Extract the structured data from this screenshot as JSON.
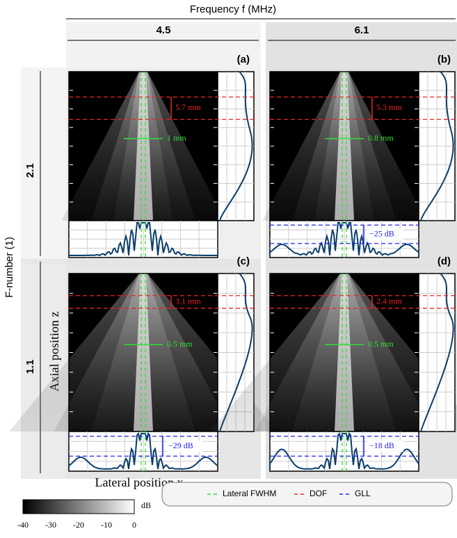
{
  "header": {
    "title": "Frequency f (MHz)",
    "columns": [
      "4.5",
      "6.1"
    ]
  },
  "rows": {
    "title": "F-number (1)",
    "labels": [
      "2.1",
      "1.1"
    ]
  },
  "axes": {
    "z": "Axial position z",
    "x": "Lateral position x"
  },
  "panels": [
    {
      "label": "(a)",
      "dof": "5.7 mm",
      "fwhm": "1 mm"
    },
    {
      "label": "(b)",
      "dof": "5.3 mm",
      "fwhm": "0.8 mm",
      "gll": "−25 dB"
    },
    {
      "label": "(c)",
      "dof": "3.1 mm",
      "fwhm": "0.5 mm",
      "gll": "−29 dB"
    },
    {
      "label": "(d)",
      "dof": "2.4 mm",
      "fwhm": "0.5 mm",
      "gll": "−18 dB"
    }
  ],
  "colorbar": {
    "unit": "dB",
    "ticks": [
      "-40",
      "-30",
      "-20",
      "-10",
      "0"
    ]
  },
  "legend": [
    "Lateral FWHM",
    "DOF",
    "GLL"
  ]
}
